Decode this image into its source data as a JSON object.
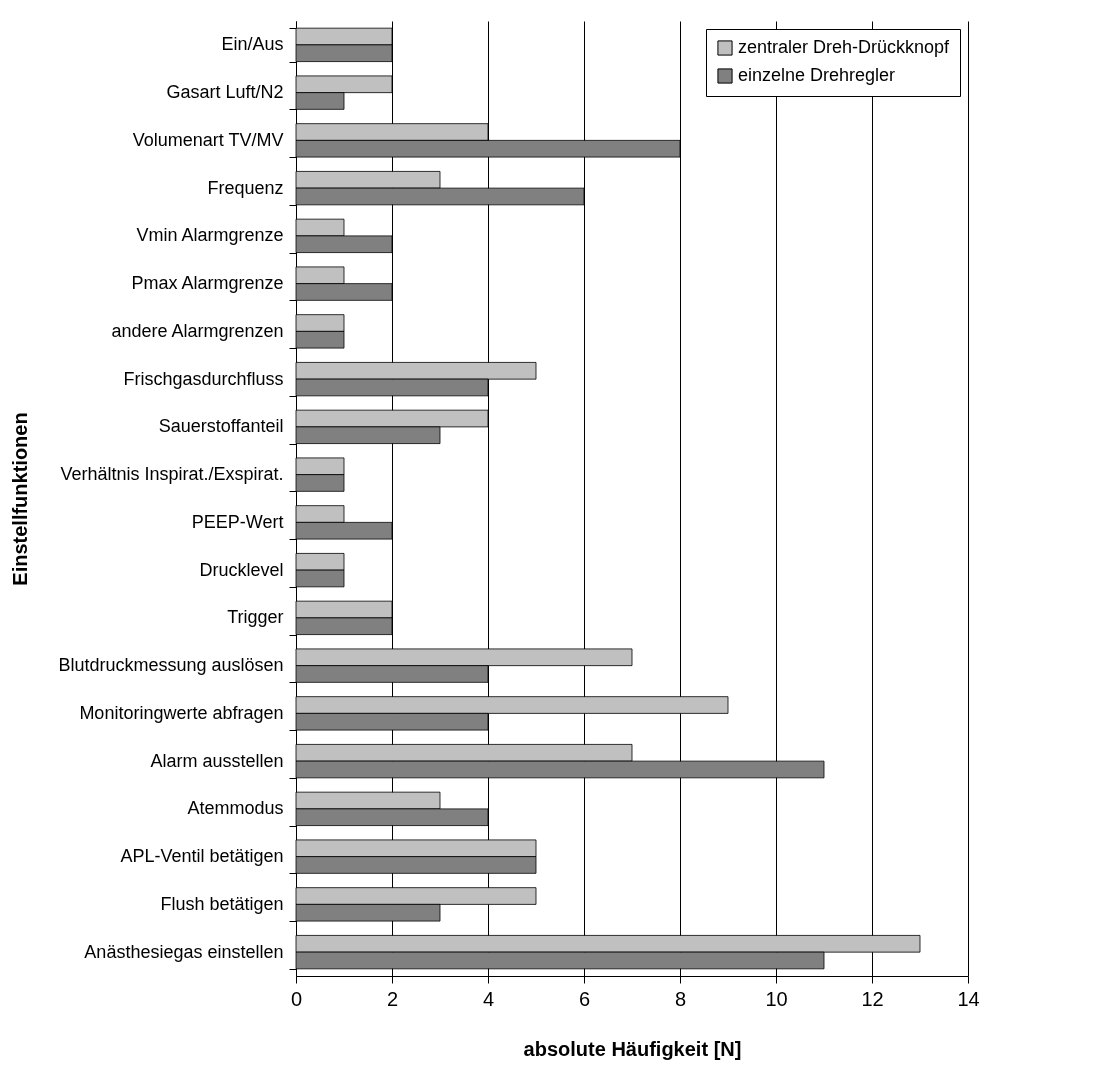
{
  "chart_data": {
    "type": "bar",
    "orientation": "horizontal",
    "ylabel": "Einstellfunktionen",
    "xlabel": "absolute Häufigkeit [N]",
    "categories": [
      "Ein/Aus",
      "Gasart Luft/N2",
      "Volumenart TV/MV",
      "Frequenz",
      "Vmin Alarmgrenze",
      "Pmax Alarmgrenze",
      "andere Alarmgrenzen",
      "Frischgasdurchfluss",
      "Sauerstoffanteil",
      "Verhältnis Inspirat./Exspirat.",
      "PEEP-Wert",
      "Drucklevel",
      "Trigger",
      "Blutdruckmessung auslösen",
      "Monitoringwerte abfragen",
      "Alarm ausstellen",
      "Atemmodus",
      "APL-Ventil betätigen",
      "Flush betätigen",
      "Anästhesiegas einstellen"
    ],
    "series": [
      {
        "name": "zentraler Dreh-Drückknopf",
        "color": "#c0c0c0",
        "values": [
          2,
          2,
          4,
          3,
          1,
          1,
          1,
          5,
          4,
          1,
          1,
          1,
          2,
          7,
          9,
          7,
          3,
          5,
          5,
          13
        ]
      },
      {
        "name": "einzelne Drehregler",
        "color": "#808080",
        "values": [
          2,
          1,
          8,
          6,
          2,
          2,
          1,
          4,
          3,
          1,
          2,
          1,
          2,
          4,
          4,
          11,
          4,
          5,
          3,
          11
        ]
      }
    ],
    "xlim": [
      0,
      14
    ],
    "xticks": [
      0,
      2,
      4,
      6,
      8,
      10,
      12,
      14
    ],
    "grid": "x",
    "legend": "top right"
  }
}
